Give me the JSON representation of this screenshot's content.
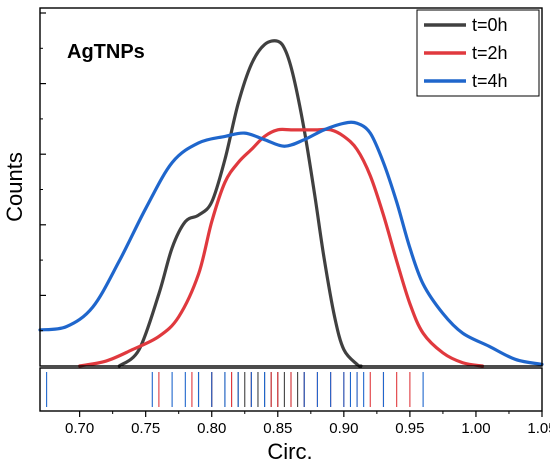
{
  "chart_data": {
    "type": "line",
    "annotation": "AgTNPs",
    "xlabel": "Circ.",
    "ylabel": "Counts",
    "xlim": [
      0.67,
      1.05
    ],
    "xticks": [
      0.7,
      0.75,
      0.8,
      0.85,
      0.9,
      0.95,
      1.0,
      1.05
    ],
    "xtick_labels": [
      "0.70",
      "0.75",
      "0.80",
      "0.85",
      "0.90",
      "0.95",
      "1.00",
      "1.05"
    ],
    "ylim": [
      0,
      1
    ],
    "y_tick_labels_shown": false,
    "grid": false,
    "legend_position": "top-right",
    "series": [
      {
        "name": "t=0h",
        "color": "#404040",
        "points": [
          [
            0.73,
            0.0
          ],
          [
            0.745,
            0.05
          ],
          [
            0.76,
            0.22
          ],
          [
            0.77,
            0.36
          ],
          [
            0.78,
            0.44
          ],
          [
            0.79,
            0.46
          ],
          [
            0.8,
            0.5
          ],
          [
            0.81,
            0.63
          ],
          [
            0.82,
            0.8
          ],
          [
            0.83,
            0.92
          ],
          [
            0.84,
            0.98
          ],
          [
            0.85,
            0.99
          ],
          [
            0.856,
            0.96
          ],
          [
            0.862,
            0.88
          ],
          [
            0.87,
            0.72
          ],
          [
            0.878,
            0.52
          ],
          [
            0.885,
            0.33
          ],
          [
            0.893,
            0.15
          ],
          [
            0.9,
            0.05
          ],
          [
            0.91,
            0.005
          ],
          [
            0.913,
            0.0
          ]
        ],
        "rug": [
          0.79,
          0.8,
          0.81,
          0.815,
          0.82,
          0.825,
          0.83,
          0.835,
          0.84,
          0.845,
          0.85,
          0.855,
          0.86,
          0.865,
          0.87
        ]
      },
      {
        "name": "t=2h",
        "color": "#e0393e",
        "points": [
          [
            0.7,
            0.0
          ],
          [
            0.72,
            0.015
          ],
          [
            0.74,
            0.05
          ],
          [
            0.76,
            0.09
          ],
          [
            0.775,
            0.15
          ],
          [
            0.79,
            0.28
          ],
          [
            0.8,
            0.44
          ],
          [
            0.81,
            0.56
          ],
          [
            0.82,
            0.62
          ],
          [
            0.83,
            0.66
          ],
          [
            0.84,
            0.7
          ],
          [
            0.85,
            0.72
          ],
          [
            0.86,
            0.72
          ],
          [
            0.87,
            0.72
          ],
          [
            0.88,
            0.72
          ],
          [
            0.89,
            0.72
          ],
          [
            0.9,
            0.7
          ],
          [
            0.91,
            0.66
          ],
          [
            0.92,
            0.58
          ],
          [
            0.93,
            0.46
          ],
          [
            0.94,
            0.32
          ],
          [
            0.95,
            0.19
          ],
          [
            0.96,
            0.1
          ],
          [
            0.975,
            0.04
          ],
          [
            0.99,
            0.01
          ],
          [
            1.005,
            0.0
          ]
        ],
        "rug": [
          0.76,
          0.785,
          0.8,
          0.815,
          0.83,
          0.845,
          0.85,
          0.86,
          0.87,
          0.88,
          0.89,
          0.9,
          0.91,
          0.92,
          0.93,
          0.94,
          0.95
        ]
      },
      {
        "name": "t=4h",
        "color": "#1f66cc",
        "points": [
          [
            0.67,
            0.11
          ],
          [
            0.69,
            0.12
          ],
          [
            0.71,
            0.18
          ],
          [
            0.73,
            0.32
          ],
          [
            0.75,
            0.48
          ],
          [
            0.77,
            0.62
          ],
          [
            0.79,
            0.68
          ],
          [
            0.81,
            0.7
          ],
          [
            0.825,
            0.71
          ],
          [
            0.84,
            0.69
          ],
          [
            0.855,
            0.67
          ],
          [
            0.87,
            0.69
          ],
          [
            0.885,
            0.72
          ],
          [
            0.9,
            0.74
          ],
          [
            0.91,
            0.74
          ],
          [
            0.92,
            0.71
          ],
          [
            0.93,
            0.62
          ],
          [
            0.94,
            0.5
          ],
          [
            0.95,
            0.36
          ],
          [
            0.96,
            0.25
          ],
          [
            0.975,
            0.16
          ],
          [
            0.99,
            0.1
          ],
          [
            1.01,
            0.06
          ],
          [
            1.03,
            0.02
          ],
          [
            1.05,
            0.005
          ]
        ],
        "rug": [
          0.675,
          0.755,
          0.77,
          0.78,
          0.79,
          0.8,
          0.81,
          0.82,
          0.83,
          0.84,
          0.87,
          0.88,
          0.89,
          0.9,
          0.905,
          0.91,
          0.915,
          0.93,
          0.96
        ]
      }
    ]
  }
}
